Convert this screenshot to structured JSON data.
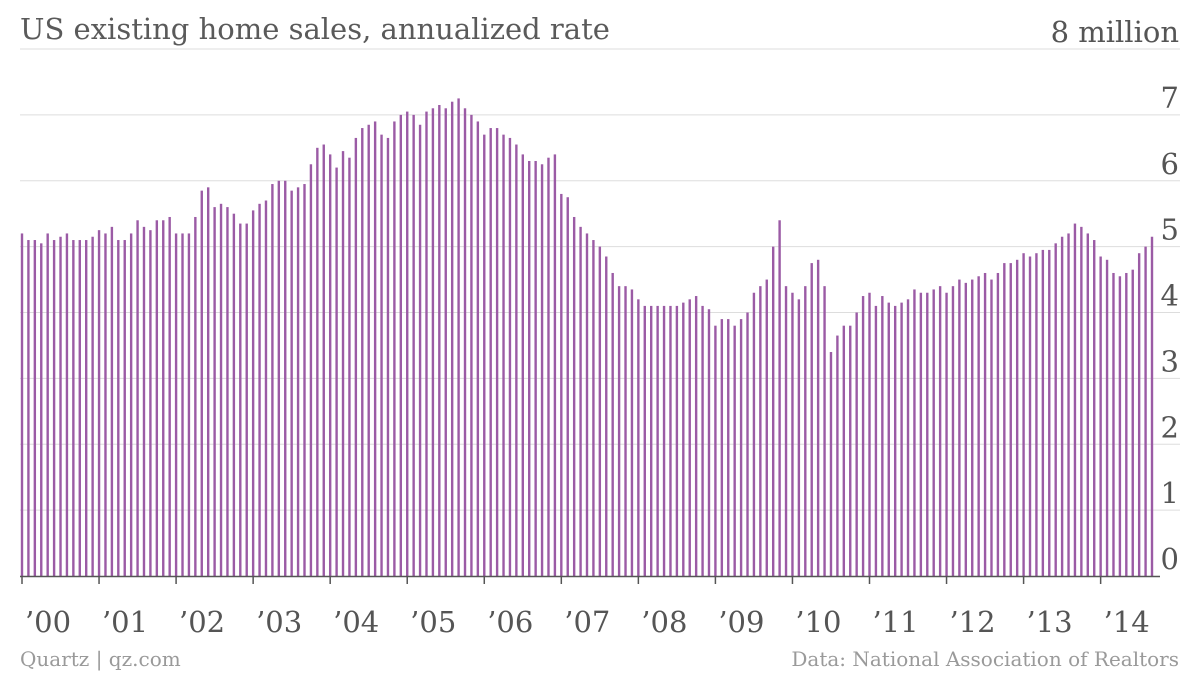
{
  "footer": {
    "credit": "Quartz | qz.com",
    "source": "Data: National Association of Realtors"
  },
  "colors": {
    "bar": "#9b5ba5",
    "grid": "#dddddd",
    "axis": "#555555"
  },
  "chart_data": {
    "type": "bar",
    "title": "US existing home sales, annualized rate",
    "units_label": "8 million",
    "xlabel": "",
    "ylabel": "",
    "ylim": [
      0,
      8
    ],
    "y_ticks": [
      0,
      1,
      2,
      3,
      4,
      5,
      6,
      7,
      8
    ],
    "y_tick_labels": [
      "0",
      "1",
      "2",
      "3",
      "4",
      "5",
      "6",
      "7",
      "8 million"
    ],
    "y_axis_side": "right",
    "grid": true,
    "legend": "none",
    "x_tick_labels": [
      "’00",
      "’01",
      "’02",
      "’03",
      "’04",
      "’05",
      "’06",
      "’07",
      "’08",
      "’09",
      "’10",
      "’11",
      "’12",
      "’13",
      "’14"
    ],
    "frequency": "monthly",
    "start": "2000-01",
    "end": "2014-08",
    "series": [
      {
        "values": [
          5.2,
          5.1,
          5.1,
          5.05,
          5.2,
          5.1,
          5.15,
          5.2,
          5.1,
          5.1,
          5.1,
          5.15,
          5.25,
          5.2,
          5.3,
          5.1,
          5.1,
          5.2,
          5.4,
          5.3,
          5.25,
          5.4,
          5.4,
          5.45,
          5.2,
          5.2,
          5.2,
          5.45,
          5.85,
          5.9,
          5.6,
          5.65,
          5.6,
          5.5,
          5.35,
          5.35,
          5.55,
          5.65,
          5.7,
          5.95,
          6.0,
          6.0,
          5.85,
          5.9,
          5.95,
          6.25,
          6.5,
          6.55,
          6.4,
          6.2,
          6.45,
          6.35,
          6.65,
          6.8,
          6.85,
          6.9,
          6.7,
          6.65,
          6.9,
          7.0,
          7.05,
          7.0,
          6.85,
          7.05,
          7.1,
          7.15,
          7.1,
          7.2,
          7.25,
          7.1,
          7.0,
          6.9,
          6.7,
          6.8,
          6.8,
          6.7,
          6.65,
          6.55,
          6.4,
          6.3,
          6.3,
          6.25,
          6.35,
          6.4,
          5.8,
          5.75,
          5.45,
          5.3,
          5.2,
          5.1,
          5.0,
          4.85,
          4.6,
          4.4,
          4.4,
          4.35,
          4.2,
          4.1,
          4.1,
          4.1,
          4.1,
          4.1,
          4.1,
          4.15,
          4.2,
          4.25,
          4.1,
          4.05,
          3.8,
          3.9,
          3.9,
          3.8,
          3.9,
          4.0,
          4.3,
          4.4,
          4.5,
          5.0,
          5.4,
          4.4,
          4.3,
          4.2,
          4.4,
          4.75,
          4.8,
          4.4,
          3.4,
          3.65,
          3.8,
          3.8,
          4.0,
          4.25,
          4.3,
          4.1,
          4.25,
          4.15,
          4.1,
          4.15,
          4.2,
          4.35,
          4.3,
          4.3,
          4.35,
          4.4,
          4.3,
          4.4,
          4.5,
          4.45,
          4.5,
          4.55,
          4.6,
          4.5,
          4.6,
          4.75,
          4.75,
          4.8,
          4.9,
          4.85,
          4.9,
          4.95,
          4.95,
          5.05,
          5.15,
          5.2,
          5.35,
          5.3,
          5.2,
          5.1,
          4.85,
          4.8,
          4.6,
          4.55,
          4.6,
          4.65,
          4.9,
          5.0,
          5.15
        ]
      }
    ]
  }
}
